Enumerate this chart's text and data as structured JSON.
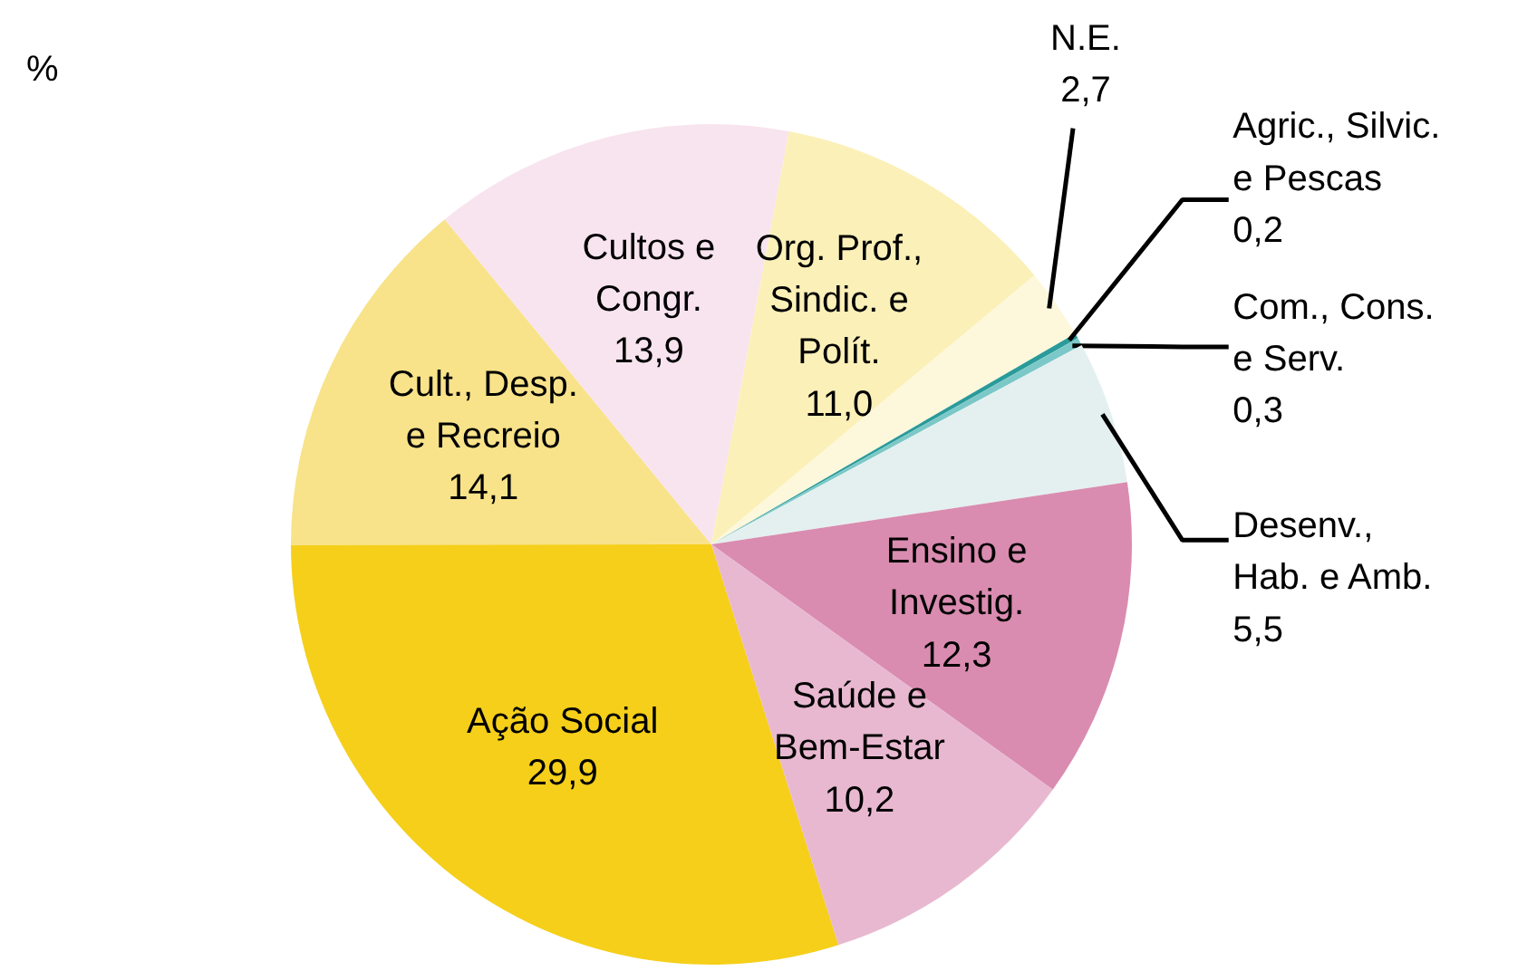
{
  "chart_data": {
    "type": "pie",
    "subtitle": "%",
    "categories": [
      "Ação Social",
      "Cult., Desp.\ne Recreio",
      "Cultos e\nCongr.",
      "Org. Prof.,\nSindic. e\nPolít.",
      "N.E.",
      "Agric., Silvic.\ne Pescas",
      "Com., Cons.\ne Serv.",
      "Desenv.,\nHab. e Amb.",
      "Ensino e\nInvestig.",
      "Saúde e\nBem-Estar"
    ],
    "values": [
      29.9,
      14.1,
      13.9,
      11.0,
      2.7,
      0.2,
      0.3,
      5.5,
      12.3,
      10.2
    ],
    "colors": [
      "#f5cf1a",
      "#f8e38a",
      "#f8e4ee",
      "#fbf0b8",
      "#fdf8dc",
      "#2a9a9a",
      "#7cc8c8",
      "#e4f0f0",
      "#d98cb0",
      "#e8b8d0"
    ],
    "value_labels": [
      "29,9",
      "14,1",
      "13,9",
      "11,0",
      "2,7",
      "0,2",
      "0,3",
      "5,5",
      "12,3",
      "10,2"
    ]
  }
}
